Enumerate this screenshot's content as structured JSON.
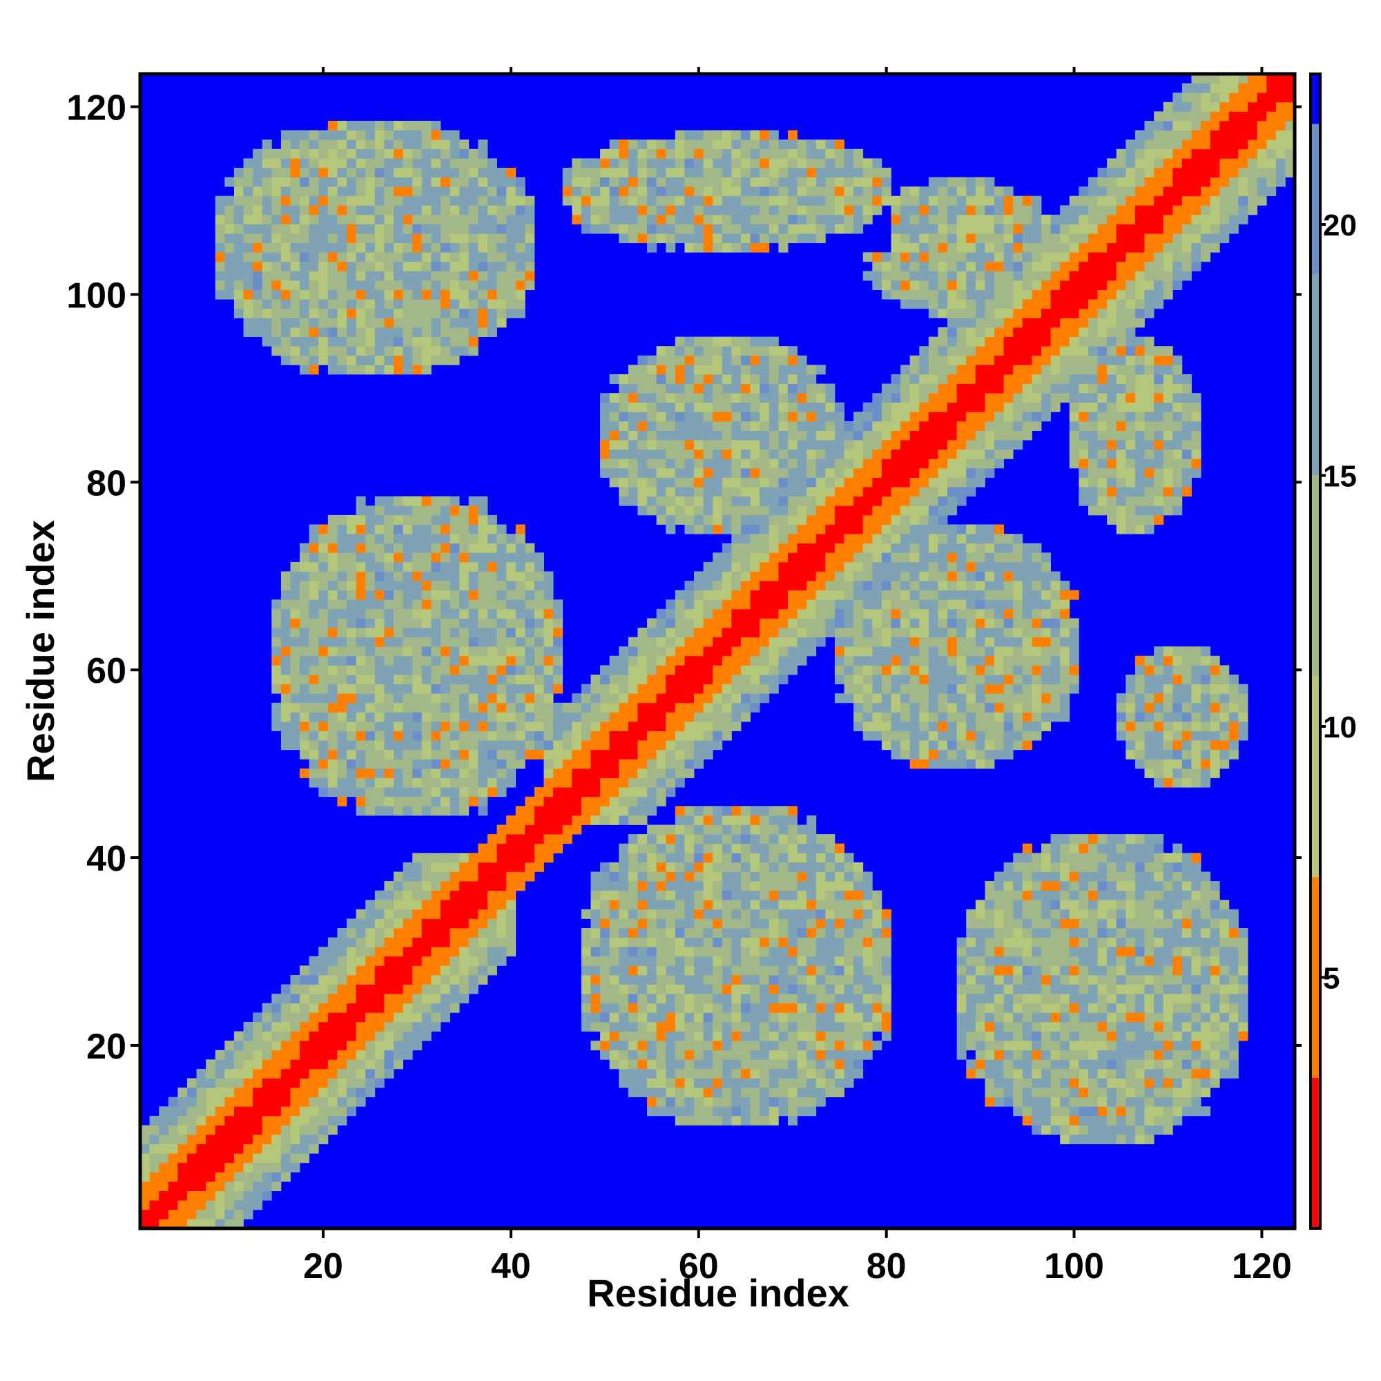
{
  "chart_data": {
    "type": "heatmap",
    "title": "",
    "xlabel": "Residue index",
    "ylabel": "Residue index",
    "n_residues": 123,
    "xlim": [
      1,
      123
    ],
    "ylim": [
      1,
      123
    ],
    "x_ticks": [
      20,
      40,
      60,
      80,
      100,
      120
    ],
    "y_ticks": [
      20,
      40,
      60,
      80,
      100,
      120
    ],
    "colorbar": {
      "ticks": [
        5,
        10,
        15,
        20
      ],
      "range": [
        0,
        23
      ],
      "colors": [
        {
          "min": 0,
          "max": 3,
          "color": "#ff0000"
        },
        {
          "min": 3,
          "max": 7,
          "color": "#ff7f00"
        },
        {
          "min": 7,
          "max": 11,
          "color": "#b5c77a"
        },
        {
          "min": 11,
          "max": 15,
          "color": "#a3b888"
        },
        {
          "min": 15,
          "max": 19,
          "color": "#7fa3b5"
        },
        {
          "min": 19,
          "max": 22,
          "color": "#6b8fc9"
        },
        {
          "min": 22,
          "max": 23,
          "color": "#0000ff"
        }
      ]
    },
    "background_color": "#0000ff",
    "grid": false,
    "legend": "colorbar-right",
    "contact_regions": [
      {
        "x": [
          2,
          40
        ],
        "y": [
          2,
          40
        ],
        "kind": "diagonal"
      },
      {
        "x": [
          44,
          123
        ],
        "y": [
          44,
          123
        ],
        "kind": "diagonal"
      },
      {
        "x": [
          9,
          42
        ],
        "y": [
          92,
          118
        ],
        "kind": "off-diagonal"
      },
      {
        "x": [
          46,
          80
        ],
        "y": [
          105,
          117
        ],
        "kind": "off-diagonal"
      },
      {
        "x": [
          15,
          45
        ],
        "y": [
          45,
          78
        ],
        "kind": "off-diagonal"
      },
      {
        "x": [
          48,
          80
        ],
        "y": [
          12,
          45
        ],
        "kind": "off-diagonal"
      },
      {
        "x": [
          88,
          118
        ],
        "y": [
          10,
          42
        ],
        "kind": "off-diagonal"
      },
      {
        "x": [
          75,
          100
        ],
        "y": [
          50,
          75
        ],
        "kind": "off-diagonal"
      },
      {
        "x": [
          105,
          118
        ],
        "y": [
          48,
          62
        ],
        "kind": "off-diagonal"
      },
      {
        "x": [
          50,
          75
        ],
        "y": [
          75,
          95
        ],
        "kind": "off-diagonal"
      },
      {
        "x": [
          100,
          113
        ],
        "y": [
          75,
          95
        ],
        "kind": "off-diagonal"
      },
      {
        "x": [
          78,
          98
        ],
        "y": [
          98,
          112
        ],
        "kind": "off-diagonal"
      }
    ]
  }
}
